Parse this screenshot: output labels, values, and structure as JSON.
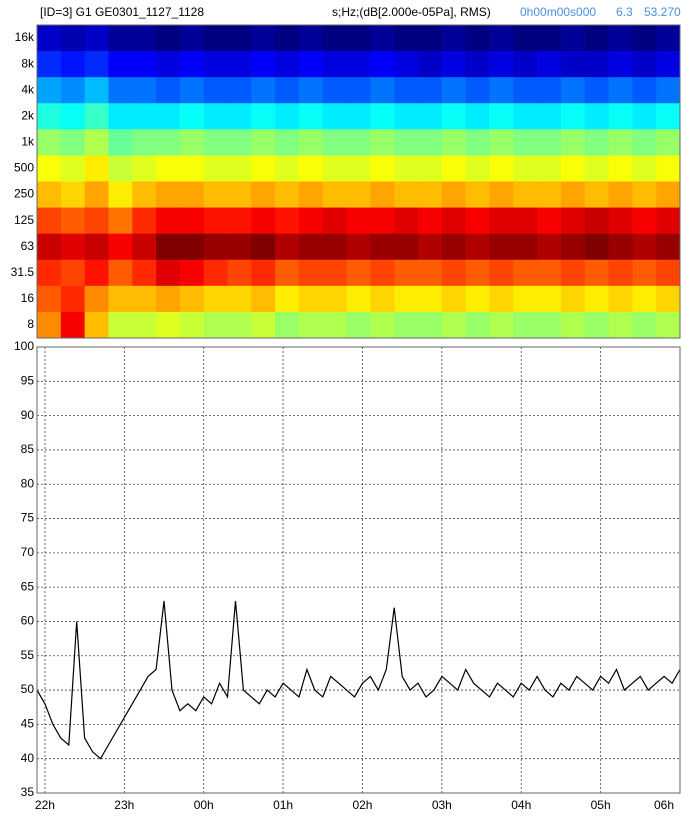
{
  "header": {
    "title": "[ID=3] G1 GE0301_1127_1128",
    "units": "s;Hz;(dB[2.000e-05Pa], RMS)",
    "cursor_time": "0h00m00s000",
    "cursor_freq": "6.3",
    "cursor_value": "53.270"
  },
  "chart_data": [
    {
      "type": "heatmap",
      "frequencies": [
        "16k",
        "8k",
        "4k",
        "2k",
        "1k",
        "500",
        "250",
        "125",
        "63",
        "31.5",
        "16",
        "8"
      ],
      "x": [
        21.9,
        22.2,
        22.5,
        22.8,
        23.1,
        23.4,
        23.7,
        24.0,
        24.3,
        24.6,
        24.9,
        25.2,
        25.5,
        25.8,
        26.1,
        26.4,
        26.7,
        27.0,
        27.3,
        27.6,
        27.9,
        28.2,
        28.5,
        28.8,
        29.1,
        29.4,
        29.7
      ],
      "xlim": [
        21.9,
        30.0
      ],
      "colormap": "jet",
      "z": [
        [
          12,
          11,
          12,
          10,
          10,
          9,
          10,
          9,
          9,
          10,
          9,
          10,
          9,
          9,
          10,
          9,
          9,
          10,
          9,
          10,
          9,
          9,
          10,
          9,
          10,
          9,
          10
        ],
        [
          16,
          15,
          16,
          14,
          14,
          13,
          14,
          13,
          13,
          14,
          13,
          14,
          13,
          13,
          14,
          13,
          12,
          13,
          12,
          13,
          12,
          13,
          12,
          12,
          13,
          12,
          13
        ],
        [
          21,
          20,
          22,
          19,
          19,
          18,
          19,
          18,
          18,
          19,
          18,
          19,
          18,
          18,
          19,
          18,
          18,
          19,
          18,
          19,
          18,
          18,
          19,
          18,
          19,
          18,
          19
        ],
        [
          26,
          25,
          27,
          24,
          24,
          24,
          25,
          24,
          24,
          25,
          24,
          25,
          24,
          24,
          25,
          24,
          24,
          25,
          24,
          25,
          24,
          24,
          25,
          24,
          25,
          24,
          25
        ],
        [
          31,
          30,
          32,
          29,
          30,
          30,
          31,
          30,
          30,
          31,
          30,
          31,
          30,
          30,
          31,
          30,
          30,
          31,
          30,
          31,
          30,
          30,
          31,
          30,
          31,
          30,
          31
        ],
        [
          35,
          34,
          36,
          33,
          34,
          35,
          35,
          34,
          34,
          35,
          34,
          35,
          34,
          34,
          35,
          34,
          34,
          35,
          34,
          35,
          34,
          34,
          35,
          34,
          35,
          34,
          35
        ],
        [
          38,
          37,
          39,
          36,
          38,
          39,
          39,
          38,
          38,
          39,
          38,
          39,
          38,
          38,
          39,
          38,
          38,
          39,
          38,
          39,
          38,
          38,
          39,
          38,
          39,
          38,
          39
        ],
        [
          43,
          42,
          43,
          41,
          44,
          46,
          46,
          45,
          45,
          46,
          45,
          46,
          47,
          46,
          46,
          47,
          46,
          47,
          46,
          47,
          47,
          46,
          47,
          48,
          47,
          46,
          47
        ],
        [
          48,
          47,
          48,
          46,
          48,
          51,
          51,
          50,
          50,
          51,
          49,
          50,
          50,
          49,
          50,
          50,
          49,
          50,
          49,
          50,
          50,
          49,
          50,
          51,
          50,
          49,
          50
        ],
        [
          44,
          43,
          45,
          42,
          44,
          47,
          46,
          44,
          43,
          44,
          42,
          43,
          43,
          42,
          43,
          42,
          42,
          43,
          42,
          43,
          42,
          42,
          43,
          42,
          43,
          42,
          43
        ],
        [
          42,
          44,
          40,
          38,
          38,
          39,
          38,
          37,
          37,
          38,
          36,
          37,
          37,
          36,
          37,
          36,
          36,
          37,
          36,
          37,
          36,
          36,
          37,
          36,
          37,
          36,
          37
        ],
        [
          40,
          46,
          38,
          33,
          33,
          34,
          33,
          32,
          32,
          33,
          31,
          32,
          32,
          31,
          32,
          31,
          31,
          32,
          31,
          32,
          31,
          31,
          32,
          31,
          32,
          31,
          32
        ]
      ]
    },
    {
      "type": "line",
      "color": "#000000",
      "grid": true,
      "x": [
        21.9,
        22.0,
        22.1,
        22.2,
        22.3,
        22.4,
        22.5,
        22.6,
        22.7,
        22.8,
        22.9,
        23.0,
        23.1,
        23.2,
        23.3,
        23.4,
        23.5,
        23.6,
        23.7,
        23.8,
        23.9,
        24.0,
        24.1,
        24.2,
        24.3,
        24.4,
        24.5,
        24.6,
        24.7,
        24.8,
        24.9,
        25.0,
        25.1,
        25.2,
        25.3,
        25.4,
        25.5,
        25.6,
        25.7,
        25.8,
        25.9,
        26.0,
        26.1,
        26.2,
        26.3,
        26.4,
        26.5,
        26.6,
        26.7,
        26.8,
        26.9,
        27.0,
        27.1,
        27.2,
        27.3,
        27.4,
        27.5,
        27.6,
        27.7,
        27.8,
        27.9,
        28.0,
        28.1,
        28.2,
        28.3,
        28.4,
        28.5,
        28.6,
        28.7,
        28.8,
        28.9,
        29.0,
        29.1,
        29.2,
        29.3,
        29.4,
        29.5,
        29.6,
        29.7,
        29.8,
        29.9,
        30.0
      ],
      "values": [
        50,
        48,
        45,
        43,
        42,
        60,
        43,
        41,
        40,
        42,
        44,
        46,
        48,
        50,
        52,
        53,
        63,
        50,
        47,
        48,
        47,
        49,
        48,
        51,
        49,
        63,
        50,
        49,
        48,
        50,
        49,
        51,
        50,
        49,
        53,
        50,
        49,
        52,
        51,
        50,
        49,
        51,
        52,
        50,
        53,
        62,
        52,
        50,
        51,
        49,
        50,
        52,
        51,
        50,
        53,
        51,
        50,
        49,
        51,
        50,
        49,
        51,
        50,
        52,
        50,
        49,
        51,
        50,
        52,
        51,
        50,
        52,
        51,
        53,
        50,
        51,
        52,
        50,
        51,
        52,
        51,
        53
      ],
      "xlim": [
        21.9,
        30.0
      ],
      "xticks": [
        {
          "value": 22,
          "label": "22h"
        },
        {
          "value": 23,
          "label": "23h"
        },
        {
          "value": 24,
          "label": "00h"
        },
        {
          "value": 25,
          "label": "01h"
        },
        {
          "value": 26,
          "label": "02h"
        },
        {
          "value": 27,
          "label": "03h"
        },
        {
          "value": 28,
          "label": "04h"
        },
        {
          "value": 29,
          "label": "05h"
        },
        {
          "value": 30,
          "label": "06h"
        }
      ],
      "ylim": [
        35,
        100
      ],
      "yticks": [
        35,
        40,
        45,
        50,
        55,
        60,
        65,
        70,
        75,
        80,
        85,
        90,
        95,
        100
      ]
    }
  ]
}
